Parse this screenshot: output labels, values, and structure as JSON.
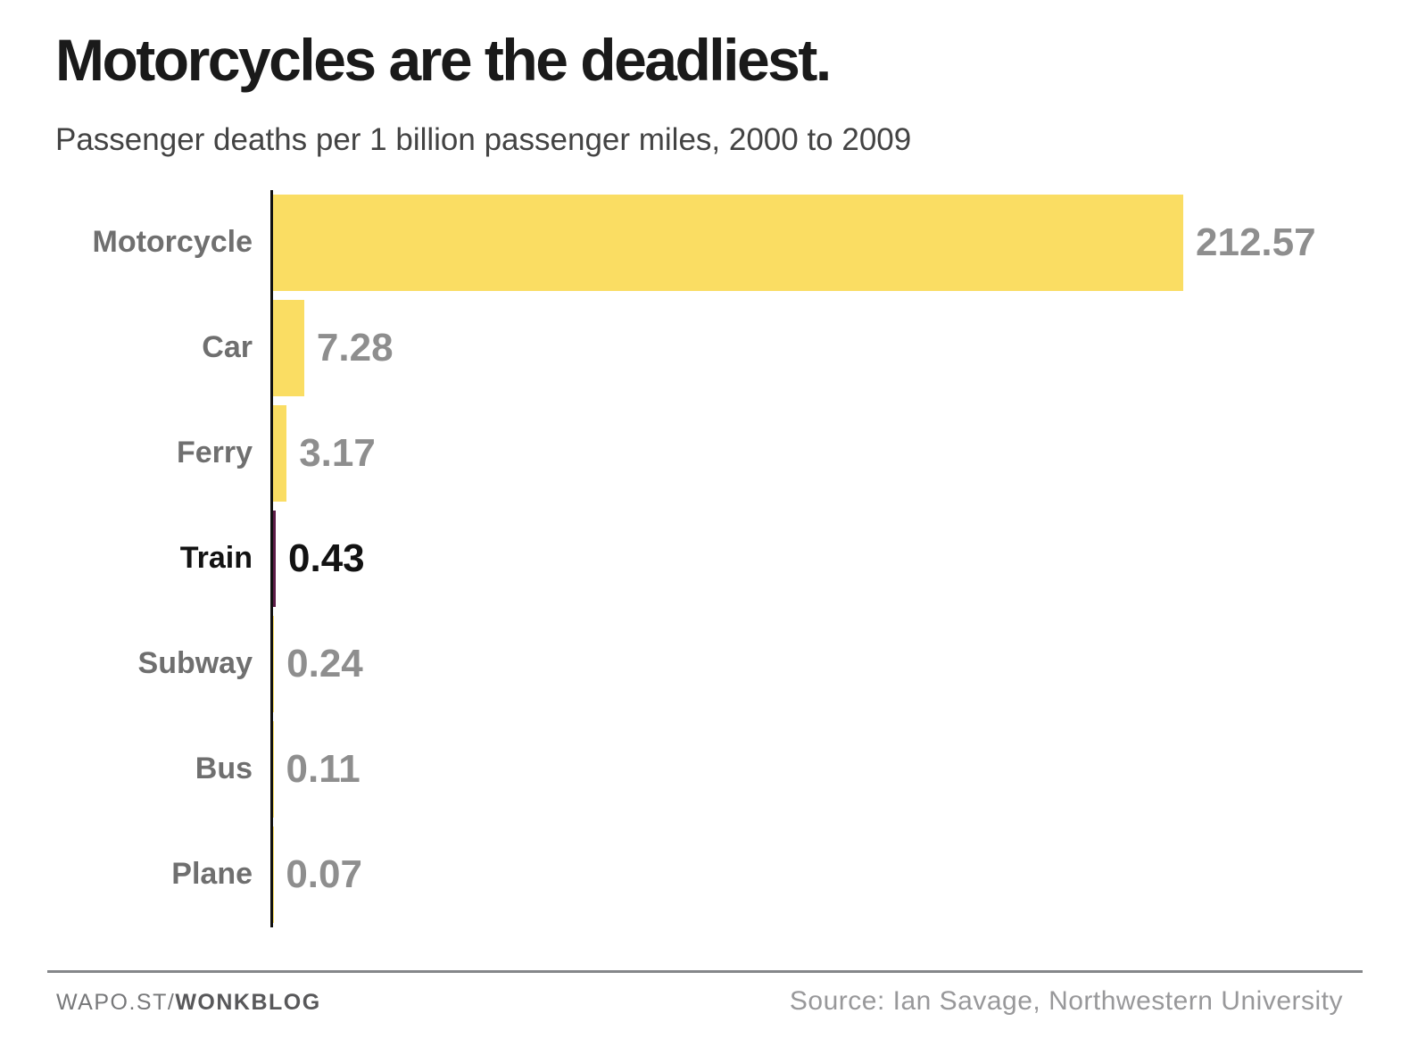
{
  "chart_data": {
    "type": "bar",
    "orientation": "horizontal",
    "title": "Motorcycles are the deadliest.",
    "subtitle": "Passenger deaths per 1 billion passenger miles, 2000 to 2009",
    "categories": [
      "Motorcycle",
      "Car",
      "Ferry",
      "Train",
      "Subway",
      "Bus",
      "Plane"
    ],
    "values": [
      212.57,
      7.28,
      3.17,
      0.43,
      0.24,
      0.11,
      0.07
    ],
    "value_labels": [
      "212.57",
      "7.28",
      "3.17",
      "0.43",
      "0.24",
      "0.11",
      "0.07"
    ],
    "highlighted_category": "Train",
    "xlim": [
      0,
      212.57
    ],
    "grid": false,
    "legend": false,
    "bar_color": "#fadd63",
    "highlight_bar_color": "#5b1b46",
    "axis_color": "#111111",
    "label_color": "#6f6f6f",
    "value_color": "#8e8e8e",
    "highlight_text_color": "#121212"
  },
  "footer": {
    "branding_site": "WAPO.ST/",
    "branding_blog": "WONKBLOG",
    "source": "Source: Ian Savage, Northwestern University"
  }
}
